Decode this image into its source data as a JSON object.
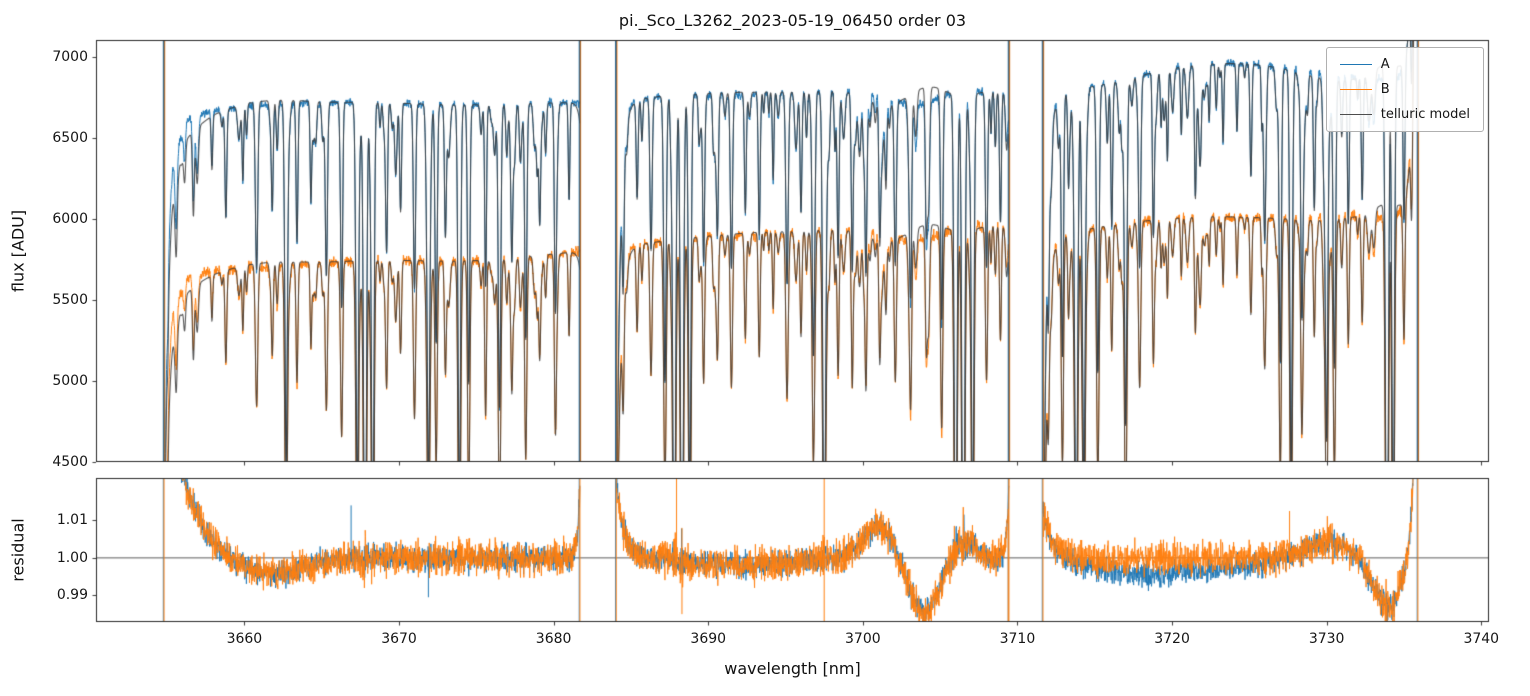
{
  "chart_data": {
    "type": "line",
    "title": "pi._Sco_L3262_2023-05-19_06450  order 03",
    "xlabel": "wavelength [nm]",
    "xlim": [
      3650.4,
      3740.5
    ],
    "xticks": [
      3660,
      3670,
      3680,
      3690,
      3700,
      3710,
      3720,
      3730,
      3740
    ],
    "top_panel": {
      "ylabel": "flux [ADU]",
      "ylim": [
        4500,
        7105
      ],
      "yticks": [
        4500,
        5000,
        5500,
        6000,
        6500,
        7000
      ],
      "grid": false
    },
    "bottom_panel": {
      "ylabel": "residual",
      "ylim": [
        0.9829,
        1.0213
      ],
      "yticks": [
        "0.99",
        "1.00",
        "1.01"
      ],
      "axhline": 1.0,
      "grid": false
    },
    "legend": {
      "position": "upper right",
      "entries": [
        {
          "label": "A",
          "color": "#1f77b4"
        },
        {
          "label": "B",
          "color": "#ff7f0e"
        },
        {
          "label": "telluric model",
          "color": "#4d4d4d"
        }
      ]
    },
    "series": {
      "A": {
        "color": "#1f77b4",
        "continuum": [
          [
            3654.8,
            6480
          ],
          [
            3656,
            6610
          ],
          [
            3658,
            6670
          ],
          [
            3660,
            6695
          ],
          [
            3663,
            6710
          ],
          [
            3667,
            6720
          ],
          [
            3670,
            6715
          ],
          [
            3673,
            6705
          ],
          [
            3676,
            6705
          ],
          [
            3679,
            6715
          ],
          [
            3681.7,
            6720
          ],
          [
            3684.05,
            6730
          ],
          [
            3687,
            6755
          ],
          [
            3690,
            6765
          ],
          [
            3693,
            6770
          ],
          [
            3696,
            6780
          ],
          [
            3699,
            6790
          ],
          [
            3702,
            6788
          ],
          [
            3705,
            6785
          ],
          [
            3707,
            6788
          ],
          [
            3709.45,
            6795
          ],
          [
            3711.65,
            6770
          ],
          [
            3713,
            6790
          ],
          [
            3715,
            6820
          ],
          [
            3717,
            6860
          ],
          [
            3719,
            6910
          ],
          [
            3721,
            6945
          ],
          [
            3723,
            6960
          ],
          [
            3725,
            6958
          ],
          [
            3727,
            6935
          ],
          [
            3729,
            6905
          ],
          [
            3731,
            6880
          ],
          [
            3733,
            6860
          ],
          [
            3734.5,
            6870
          ],
          [
            3735.9,
            6890
          ]
        ]
      },
      "B": {
        "color": "#ff7f0e",
        "continuum": [
          [
            3654.8,
            5560
          ],
          [
            3656,
            5640
          ],
          [
            3658,
            5680
          ],
          [
            3660,
            5700
          ],
          [
            3663,
            5715
          ],
          [
            3667,
            5740
          ],
          [
            3670,
            5745
          ],
          [
            3673,
            5740
          ],
          [
            3676,
            5745
          ],
          [
            3679,
            5775
          ],
          [
            3681.7,
            5800
          ],
          [
            3684.05,
            5830
          ],
          [
            3687,
            5860
          ],
          [
            3690,
            5885
          ],
          [
            3693,
            5905
          ],
          [
            3696,
            5920
          ],
          [
            3699,
            5935
          ],
          [
            3702,
            5938
          ],
          [
            3705,
            5940
          ],
          [
            3707,
            5950
          ],
          [
            3709.45,
            5970
          ],
          [
            3711.65,
            5890
          ],
          [
            3713,
            5910
          ],
          [
            3715,
            5945
          ],
          [
            3717,
            5975
          ],
          [
            3719,
            5995
          ],
          [
            3721,
            6010
          ],
          [
            3723,
            6015
          ],
          [
            3725,
            6010
          ],
          [
            3727,
            6005
          ],
          [
            3729,
            6010
          ],
          [
            3731,
            6025
          ],
          [
            3733,
            6010
          ],
          [
            3734.5,
            6020
          ],
          [
            3735.9,
            6040
          ]
        ]
      },
      "model_color": "rgba(58,58,58,0.85)"
    },
    "segments": [
      [
        3654.8,
        3681.7
      ],
      [
        3684.05,
        3709.45
      ],
      [
        3711.65,
        3735.9
      ]
    ],
    "telluric_lines": [
      [
        3655.6,
        0.06,
        0.06
      ],
      [
        3656.7,
        0.08,
        0.06
      ],
      [
        3657.9,
        0.05,
        0.05
      ],
      [
        3658.8,
        0.1,
        0.06
      ],
      [
        3659.9,
        0.07,
        0.05
      ],
      [
        3660.8,
        0.14,
        0.07
      ],
      [
        3661.8,
        0.1,
        0.06
      ],
      [
        3662.7,
        0.32,
        0.08
      ],
      [
        3663.4,
        0.13,
        0.06
      ],
      [
        3664.3,
        0.09,
        0.05
      ],
      [
        3665.3,
        0.16,
        0.07
      ],
      [
        3666.3,
        0.12,
        0.06
      ],
      [
        3667.3,
        0.34,
        0.08
      ],
      [
        3667.8,
        0.5,
        0.09
      ],
      [
        3668.3,
        0.44,
        0.08
      ],
      [
        3669.2,
        0.13,
        0.06
      ],
      [
        3670.1,
        0.1,
        0.06
      ],
      [
        3671.0,
        0.17,
        0.07
      ],
      [
        3671.9,
        0.34,
        0.08
      ],
      [
        3672.4,
        0.22,
        0.07
      ],
      [
        3673.0,
        0.12,
        0.06
      ],
      [
        3673.9,
        0.38,
        0.08
      ],
      [
        3674.5,
        0.2,
        0.07
      ],
      [
        3675.6,
        0.12,
        0.06
      ],
      [
        3676.5,
        0.28,
        0.08
      ],
      [
        3677.3,
        0.13,
        0.06
      ],
      [
        3678.2,
        0.19,
        0.07
      ],
      [
        3679.1,
        0.11,
        0.06
      ],
      [
        3680.1,
        0.15,
        0.06
      ],
      [
        3681.0,
        0.09,
        0.05
      ],
      [
        3684.5,
        0.12,
        0.06
      ],
      [
        3685.4,
        0.09,
        0.06
      ],
      [
        3686.3,
        0.14,
        0.07
      ],
      [
        3687.2,
        0.26,
        0.08
      ],
      [
        3687.8,
        0.48,
        0.09
      ],
      [
        3688.3,
        0.52,
        0.09
      ],
      [
        3688.8,
        0.34,
        0.08
      ],
      [
        3689.7,
        0.13,
        0.06
      ],
      [
        3690.6,
        0.1,
        0.06
      ],
      [
        3691.5,
        0.16,
        0.07
      ],
      [
        3692.4,
        0.11,
        0.06
      ],
      [
        3693.3,
        0.13,
        0.06
      ],
      [
        3694.2,
        0.08,
        0.05
      ],
      [
        3695.1,
        0.15,
        0.07
      ],
      [
        3696.0,
        0.11,
        0.06
      ],
      [
        3696.8,
        0.22,
        0.07
      ],
      [
        3697.5,
        0.44,
        0.09
      ],
      [
        3698.4,
        0.13,
        0.06
      ],
      [
        3699.3,
        0.1,
        0.06
      ],
      [
        3700.2,
        0.13,
        0.06
      ],
      [
        3701.1,
        0.1,
        0.06
      ],
      [
        3702.1,
        0.15,
        0.07
      ],
      [
        3703.1,
        0.12,
        0.06
      ],
      [
        3704.1,
        0.11,
        0.06
      ],
      [
        3705.1,
        0.21,
        0.07
      ],
      [
        3706.0,
        0.46,
        0.09
      ],
      [
        3706.5,
        0.52,
        0.09
      ],
      [
        3707.1,
        0.4,
        0.08
      ],
      [
        3708.0,
        0.16,
        0.07
      ],
      [
        3708.9,
        0.12,
        0.06
      ],
      [
        3712.0,
        0.13,
        0.06
      ],
      [
        3712.9,
        0.21,
        0.07
      ],
      [
        3713.8,
        0.44,
        0.09
      ],
      [
        3714.3,
        0.36,
        0.08
      ],
      [
        3715.2,
        0.26,
        0.08
      ],
      [
        3716.1,
        0.13,
        0.06
      ],
      [
        3717.0,
        0.31,
        0.08
      ],
      [
        3717.9,
        0.16,
        0.07
      ],
      [
        3718.8,
        0.11,
        0.06
      ],
      [
        3719.7,
        0.08,
        0.05
      ],
      [
        3720.6,
        0.06,
        0.05
      ],
      [
        3721.5,
        0.08,
        0.05
      ],
      [
        3722.4,
        0.05,
        0.05
      ],
      [
        3723.3,
        0.07,
        0.05
      ],
      [
        3724.2,
        0.06,
        0.05
      ],
      [
        3725.1,
        0.1,
        0.06
      ],
      [
        3726.0,
        0.15,
        0.07
      ],
      [
        3727.0,
        0.22,
        0.07
      ],
      [
        3727.7,
        0.36,
        0.08
      ],
      [
        3728.4,
        0.2,
        0.07
      ],
      [
        3729.2,
        0.12,
        0.06
      ],
      [
        3730.0,
        0.32,
        0.08
      ],
      [
        3730.5,
        0.26,
        0.08
      ],
      [
        3731.4,
        0.13,
        0.06
      ],
      [
        3732.3,
        0.11,
        0.06
      ],
      [
        3733.9,
        0.5,
        0.09
      ],
      [
        3734.3,
        0.44,
        0.08
      ],
      [
        3735.0,
        0.14,
        0.06
      ],
      [
        3735.5,
        0.1,
        0.06
      ]
    ],
    "broad_feature": [
      3703.3,
      0.012,
      1.3
    ],
    "microlines": {
      "seed": 7,
      "count": 175,
      "wl_range": [
        3655.0,
        3735.8
      ],
      "depth_range": [
        0.012,
        0.055
      ],
      "width_range": [
        0.04,
        0.09
      ]
    },
    "edge_ramp": {
      "drop": 0.45,
      "tau": 0.22
    },
    "final_upturn": {
      "amp": 0.9,
      "tau": 0.2,
      "segment": 2
    },
    "residual_features": [
      {
        "seg": 0,
        "type": "edge_start",
        "amp": 0.055,
        "tau": 1.4
      },
      {
        "seg": 0,
        "type": "gauss",
        "c": 3661.5,
        "w": 2.2,
        "amp": -0.0045
      },
      {
        "seg": 0,
        "type": "edge_end",
        "amp": 0.02,
        "tau": 0.15
      },
      {
        "seg": 1,
        "type": "edge_start",
        "amp": 0.02,
        "tau": 0.5
      },
      {
        "seg": 1,
        "type": "gauss",
        "c": 3692.0,
        "w": 3.0,
        "amp": -0.002
      },
      {
        "seg": 1,
        "type": "gauss",
        "c": 3701.2,
        "w": 1.1,
        "amp": 0.009
      },
      {
        "seg": 1,
        "type": "gauss",
        "c": 3703.9,
        "w": 1.1,
        "amp": -0.0145
      },
      {
        "seg": 1,
        "type": "gauss",
        "c": 3706.4,
        "w": 0.8,
        "amp": 0.005
      },
      {
        "seg": 1,
        "type": "edge_end",
        "amp": 0.02,
        "tau": 0.15
      },
      {
        "seg": 2,
        "type": "edge_start",
        "amp": 0.012,
        "tau": 0.6
      },
      {
        "seg": 2,
        "type": "gauss",
        "c": 3730.0,
        "w": 1.5,
        "amp": 0.004
      },
      {
        "seg": 2,
        "type": "gauss",
        "c": 3733.9,
        "w": 0.9,
        "amp": -0.013
      },
      {
        "seg": 2,
        "type": "edge_end",
        "amp": 0.08,
        "tau": 0.25
      }
    ],
    "residual_series_offsets": {
      "A": [
        {
          "c": 3717.5,
          "w": 2.5,
          "amp": -0.004
        },
        {
          "c": 3722.5,
          "w": 3.0,
          "amp": -0.0025
        }
      ],
      "B": []
    },
    "residual_spikes": [
      {
        "x": 3666.9,
        "series": "A",
        "y0": 0.999,
        "y1": 1.014
      },
      {
        "x": 3671.9,
        "series": "A",
        "y0": 0.9895,
        "y1": 1.002
      },
      {
        "x": 3687.95,
        "series": "B",
        "y0": 0.998,
        "y1": 1.0213
      },
      {
        "x": 3688.3,
        "series": "B",
        "y0": 0.985,
        "y1": 1.008
      },
      {
        "x": 3697.5,
        "series": "B",
        "y0": 0.9829,
        "y1": 1.0213
      },
      {
        "x": 3709.4,
        "series": "B",
        "y0": 0.9829,
        "y1": 1.013
      },
      {
        "x": 3727.6,
        "series": "B",
        "y0": 0.997,
        "y1": 1.0125
      }
    ],
    "noise": {
      "seed": 20230519,
      "A_flux": 0.0018,
      "B_flux": 0.0028,
      "A_res": 0.0016,
      "B_res": 0.0021,
      "amp_cap_flux": 2.5,
      "amp_cap_res": 6
    }
  }
}
